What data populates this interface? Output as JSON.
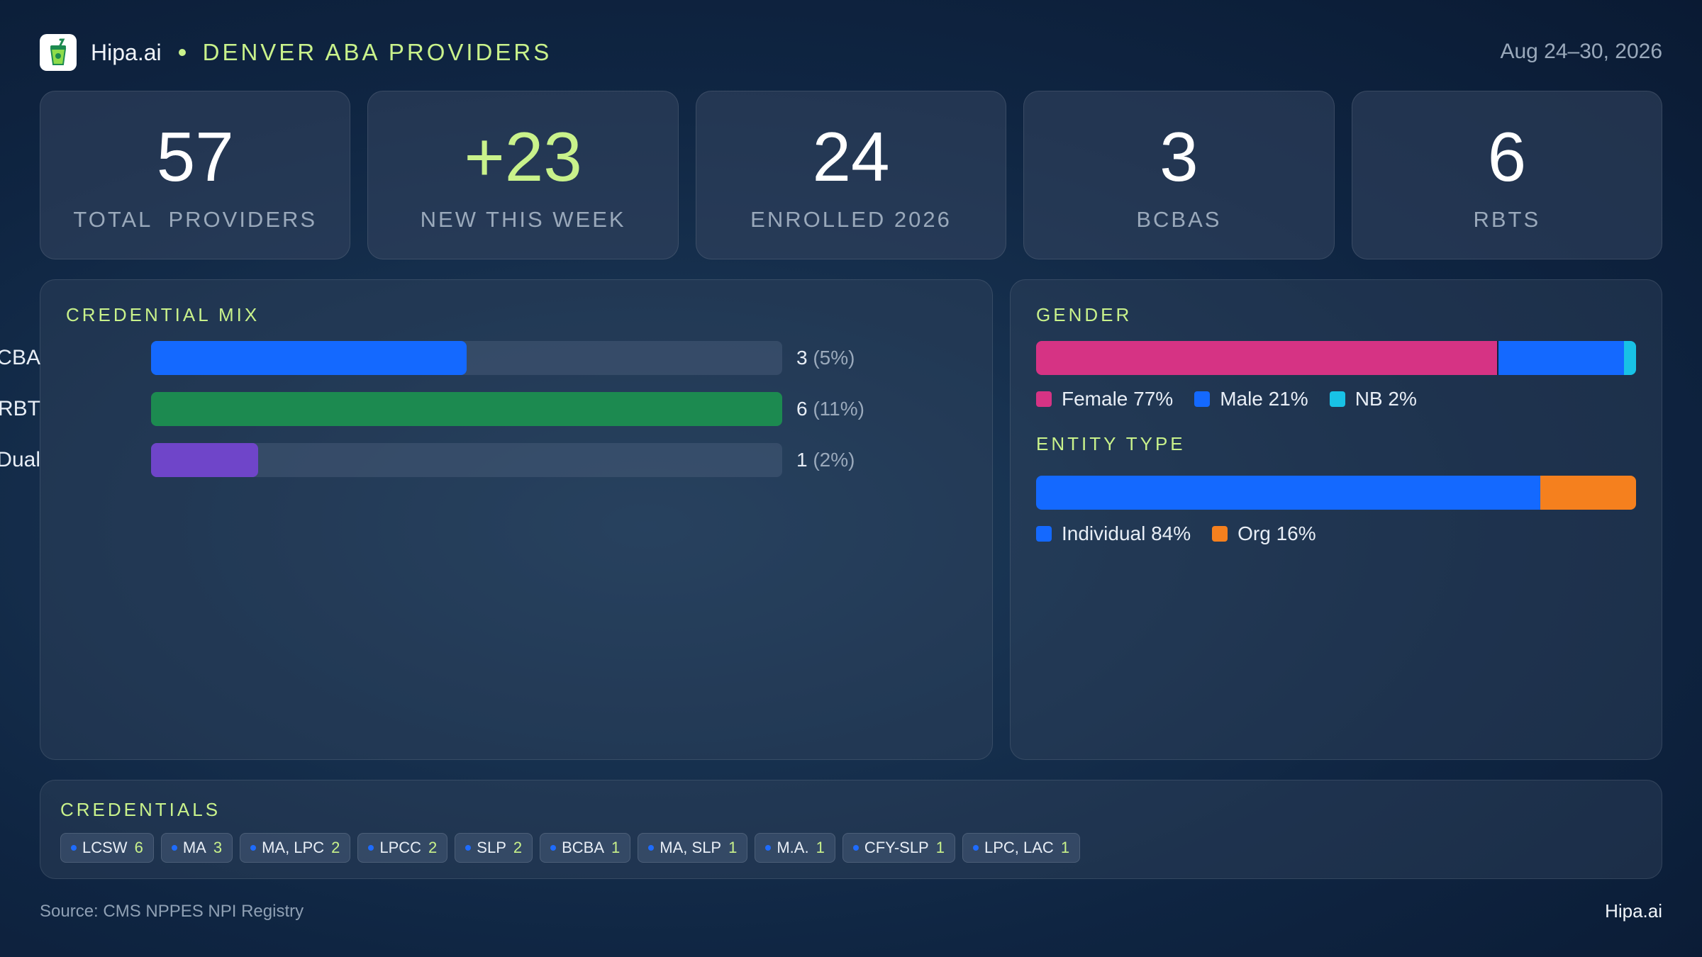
{
  "header": {
    "brand": "Hipa.ai",
    "subtitle": "DENVER ABA PROVIDERS",
    "date_range": "Aug 24–30, 2026",
    "logo_icon": "cup-icon"
  },
  "kpis": [
    {
      "value": "57",
      "label": "TOTAL  PROVIDERS"
    },
    {
      "value": "+23",
      "label": "NEW THIS WEEK"
    },
    {
      "value": "24",
      "label": "ENROLLED 2026"
    },
    {
      "value": "3",
      "label": "BCBAS"
    },
    {
      "value": "6",
      "label": "RBTS"
    }
  ],
  "credential_mix": {
    "title": "CREDENTIAL MIX",
    "rows": [
      {
        "label": "BCBA",
        "count": "3",
        "pct": "(5%)",
        "fill": 0.5,
        "color": "#1469ff"
      },
      {
        "label": "RBT",
        "count": "6",
        "pct": "(11%)",
        "fill": 1.0,
        "color": "#1c8a50"
      },
      {
        "label": "Dual",
        "count": "1",
        "pct": "(2%)",
        "fill": 0.17,
        "color": "#6f45c9"
      }
    ]
  },
  "gender": {
    "title": "GENDER",
    "segments": [
      {
        "label": "Female 77%",
        "share": 77,
        "color": "#d63384"
      },
      {
        "label": "Male 21%",
        "share": 21,
        "color": "#1469ff"
      },
      {
        "label": "NB 2%",
        "share": 2,
        "color": "#18c2e6"
      }
    ]
  },
  "entity_type": {
    "title": "ENTITY TYPE",
    "segments": [
      {
        "label": "Individual 84%",
        "share": 84,
        "color": "#1469ff"
      },
      {
        "label": "Org 16%",
        "share": 16,
        "color": "#f5801e"
      }
    ]
  },
  "credentials": {
    "title": "CREDENTIALS",
    "chips": [
      {
        "name": "LCSW",
        "count": "6"
      },
      {
        "name": "MA",
        "count": "3"
      },
      {
        "name": "MA, LPC",
        "count": "2"
      },
      {
        "name": "LPCC",
        "count": "2"
      },
      {
        "name": "SLP",
        "count": "2"
      },
      {
        "name": "BCBA",
        "count": "1"
      },
      {
        "name": "MA, SLP",
        "count": "1"
      },
      {
        "name": "M.A.",
        "count": "1"
      },
      {
        "name": "CFY-SLP",
        "count": "1"
      },
      {
        "name": "LPC, LAC",
        "count": "1"
      }
    ]
  },
  "footer": {
    "source": "Source: CMS NPPES NPI Registry",
    "brand": "Hipa.ai"
  }
}
